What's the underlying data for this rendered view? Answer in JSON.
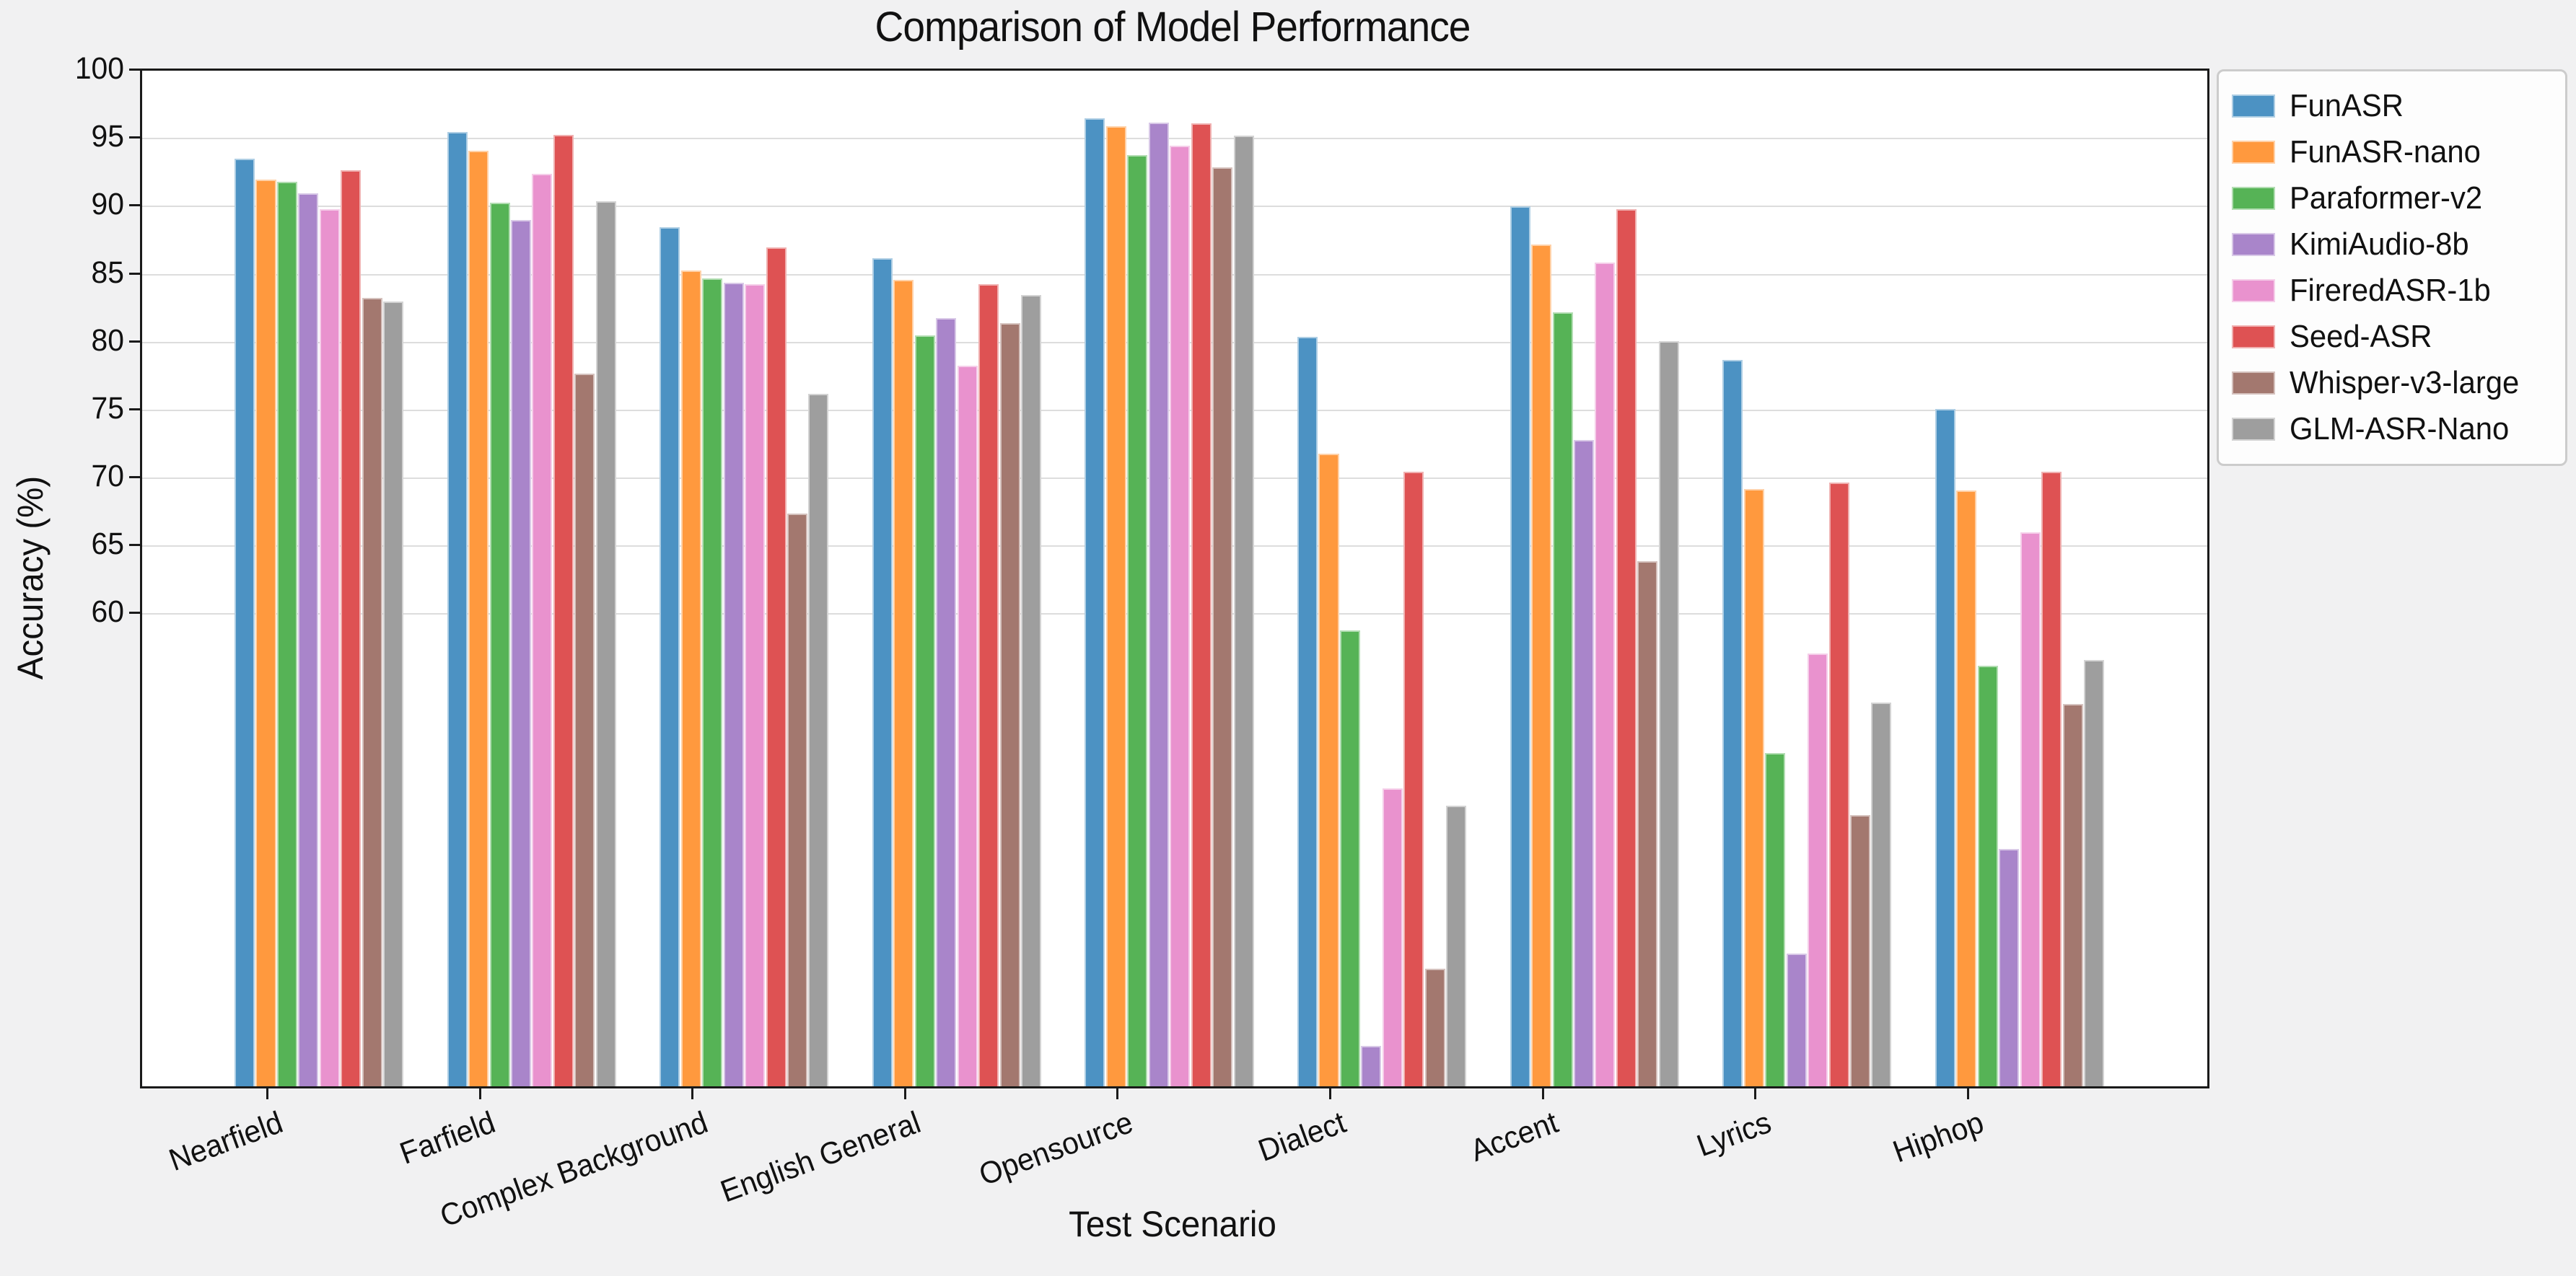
{
  "title": "Comparison of Model Performance",
  "chart_data": {
    "type": "bar",
    "title": "Comparison of Model Performance",
    "xlabel": "Test Scenario",
    "ylabel": "Accuracy (%)",
    "grid": true,
    "legend_position": "outside-right",
    "ylim": [
      25.3,
      100
    ],
    "yticks": [
      60,
      65,
      70,
      75,
      80,
      85,
      90,
      95,
      100
    ],
    "categories": [
      "Nearfield",
      "Farfield",
      "Complex Background",
      "English General",
      "Opensource",
      "Dialect",
      "Accent",
      "Lyrics",
      "Hiphop"
    ],
    "series": [
      {
        "name": "FunASR",
        "color": "#4C92C3",
        "values": [
          93.5,
          95.5,
          88.5,
          86.2,
          96.5,
          80.4,
          90.0,
          78.7,
          75.1
        ]
      },
      {
        "name": "FunASR-nano",
        "color": "#FF993E",
        "values": [
          92.0,
          94.1,
          85.3,
          84.6,
          95.9,
          71.8,
          87.2,
          69.2,
          69.1
        ]
      },
      {
        "name": "Paraformer-v2",
        "color": "#56B356",
        "values": [
          91.8,
          90.3,
          84.7,
          80.5,
          93.8,
          58.8,
          82.2,
          49.8,
          56.2
        ]
      },
      {
        "name": "KimiAudio-8b",
        "color": "#A985CA",
        "values": [
          91.0,
          89.0,
          84.4,
          81.8,
          96.2,
          28.2,
          72.8,
          35.0,
          42.7
        ]
      },
      {
        "name": "FireredASR-1b",
        "color": "#E992CE",
        "values": [
          89.8,
          92.4,
          84.3,
          78.3,
          94.5,
          47.2,
          85.9,
          57.1,
          66.0
        ]
      },
      {
        "name": "Seed-ASR",
        "color": "#DE5253",
        "values": [
          92.7,
          95.3,
          87.0,
          84.3,
          96.1,
          70.5,
          89.8,
          69.7,
          70.5
        ]
      },
      {
        "name": "Whisper-v3-large",
        "color": "#A3786F",
        "values": [
          83.3,
          77.7,
          67.4,
          81.4,
          92.9,
          33.9,
          63.9,
          45.2,
          53.4
        ]
      },
      {
        "name": "GLM-ASR-Nano",
        "color": "#9E9E9E",
        "values": [
          83.0,
          90.4,
          76.2,
          83.5,
          95.2,
          45.9,
          80.1,
          53.5,
          56.6
        ]
      }
    ]
  }
}
